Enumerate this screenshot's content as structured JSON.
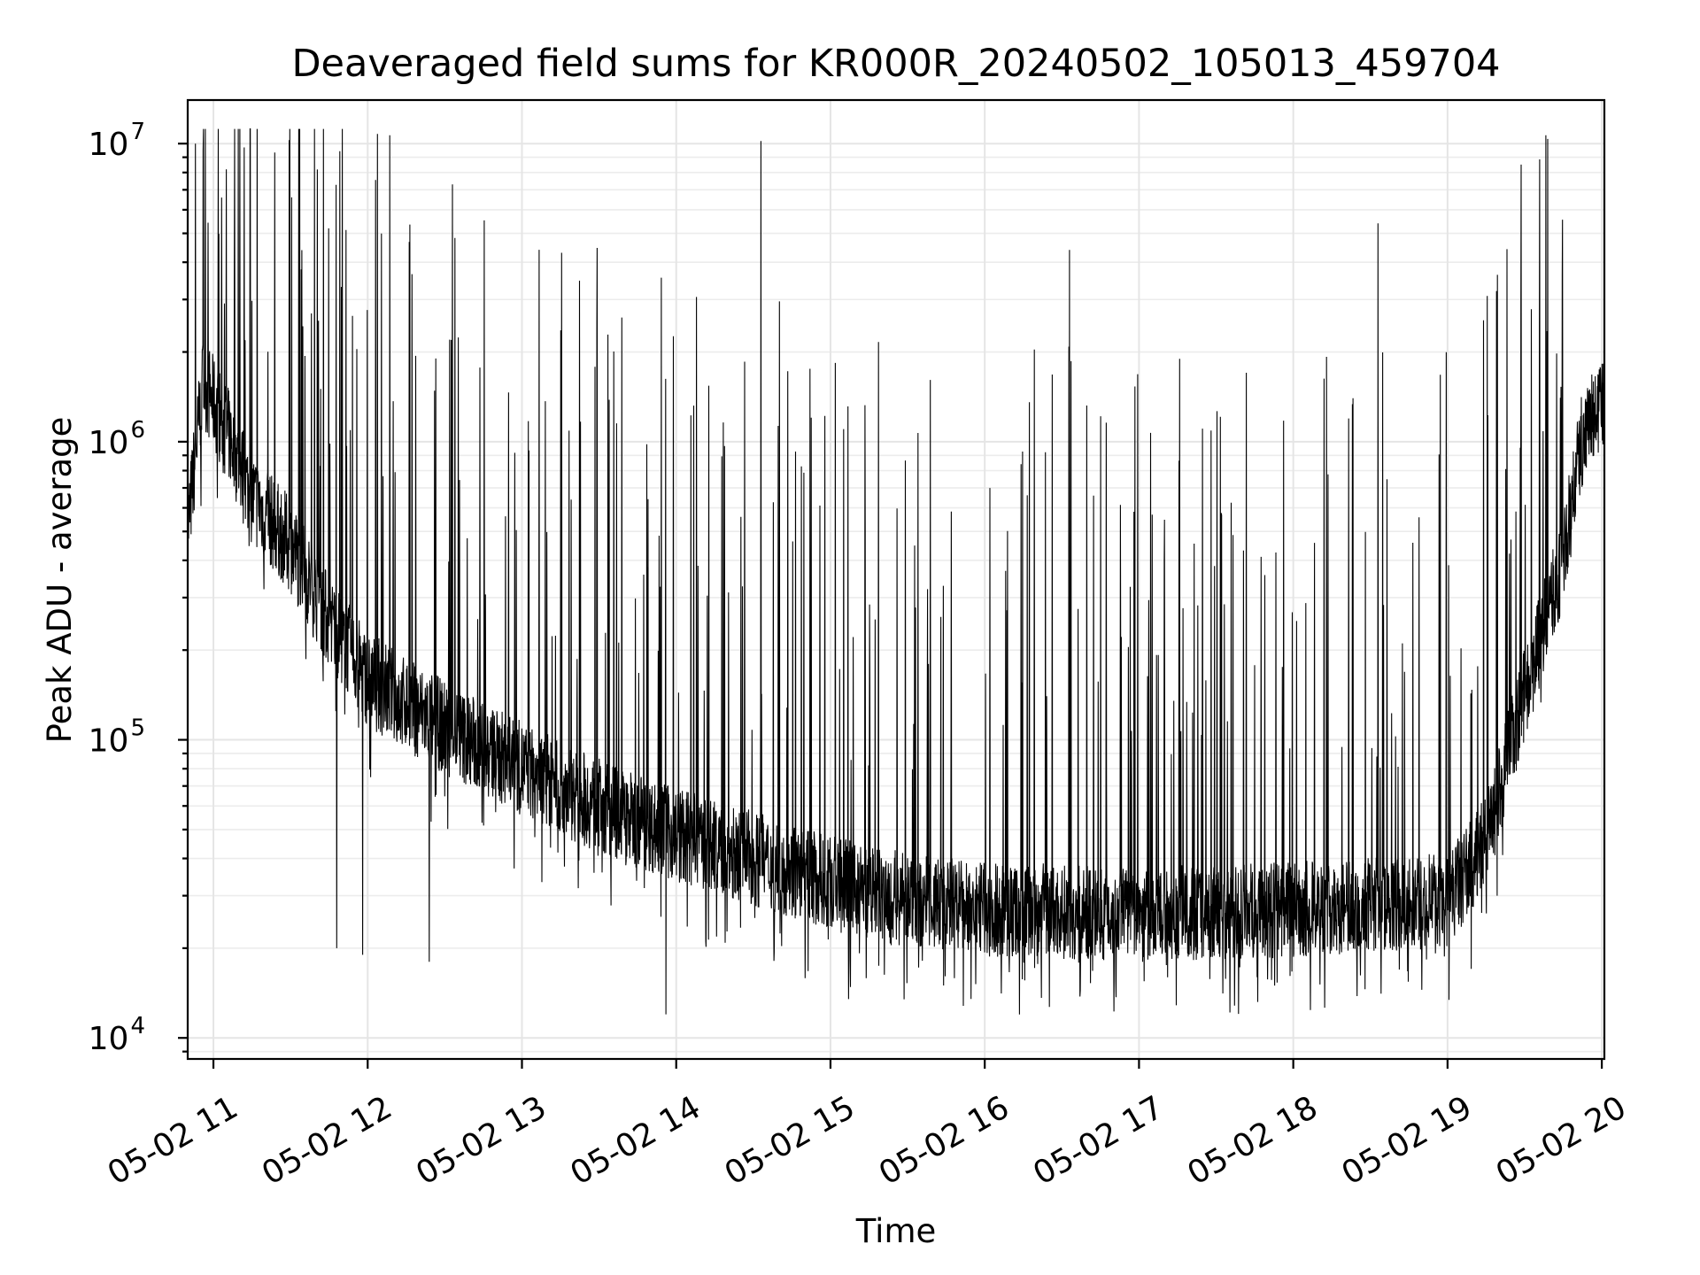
{
  "chart_data": {
    "type": "line",
    "title": "Deaveraged field sums for KR000R_20240502_105013_459704",
    "xlabel": "Time",
    "ylabel": "Peak ADU - average",
    "xscale": "time",
    "yscale": "log",
    "grid": true,
    "legend": "none",
    "line_color": "#000000",
    "xlim": [
      "2024-05-02 10:50",
      "2024-05-02 20:01"
    ],
    "ylim": [
      8500,
      14000000
    ],
    "x_ticks": [
      "05-02 11",
      "05-02 12",
      "05-02 13",
      "05-02 14",
      "05-02 15",
      "05-02 16",
      "05-02 17",
      "05-02 18",
      "05-02 19",
      "05-02 20"
    ],
    "y_ticks": [
      {
        "base": "10",
        "exp": "4",
        "value": 10000
      },
      {
        "base": "10",
        "exp": "5",
        "value": 100000
      },
      {
        "base": "10",
        "exp": "6",
        "value": 1000000
      },
      {
        "base": "10",
        "exp": "7",
        "value": 10000000
      }
    ],
    "series": [
      {
        "baseline": [
          [
            "2024-05-02 10:50",
            500000
          ],
          [
            "2024-05-02 10:56",
            1600000
          ],
          [
            "2024-05-02 11:05",
            1100000
          ],
          [
            "2024-05-02 11:15",
            650000
          ],
          [
            "2024-05-02 11:30",
            450000
          ],
          [
            "2024-05-02 11:45",
            250000
          ],
          [
            "2024-05-02 12:00",
            160000
          ],
          [
            "2024-05-02 12:30",
            110000
          ],
          [
            "2024-05-02 13:00",
            80000
          ],
          [
            "2024-05-02 13:30",
            60000
          ],
          [
            "2024-05-02 14:00",
            48000
          ],
          [
            "2024-05-02 14:30",
            40000
          ],
          [
            "2024-05-02 15:00",
            33000
          ],
          [
            "2024-05-02 15:30",
            29000
          ],
          [
            "2024-05-02 16:00",
            27000
          ],
          [
            "2024-05-02 17:00",
            26000
          ],
          [
            "2024-05-02 18:00",
            27000
          ],
          [
            "2024-05-02 19:00",
            29000
          ],
          [
            "2024-05-02 19:15",
            45000
          ],
          [
            "2024-05-02 19:25",
            100000
          ],
          [
            "2024-05-02 19:35",
            200000
          ],
          [
            "2024-05-02 19:45",
            400000
          ],
          [
            "2024-05-02 19:52",
            1000000
          ],
          [
            "2024-05-02 20:01",
            1400000
          ]
        ],
        "spikes": [
          [
            "2024-05-02 10:53",
            10000000
          ],
          [
            "2024-05-02 11:05",
            8200000
          ],
          [
            "2024-05-02 12:33",
            7300000
          ],
          [
            "2024-05-02 14:33",
            10200000
          ],
          [
            "2024-05-02 16:33",
            4400000
          ],
          [
            "2024-05-02 18:33",
            5400000
          ]
        ],
        "dips": [
          [
            "2024-05-02 11:48",
            20000
          ],
          [
            "2024-05-02 11:58",
            19000
          ],
          [
            "2024-05-02 12:24",
            18000
          ],
          [
            "2024-05-02 13:56",
            12000
          ],
          [
            "2024-05-02 15:07",
            13500
          ],
          [
            "2024-05-02 15:44",
            15000
          ],
          [
            "2024-05-02 17:02",
            15500
          ],
          [
            "2024-05-02 18:50",
            14500
          ]
        ]
      }
    ]
  }
}
